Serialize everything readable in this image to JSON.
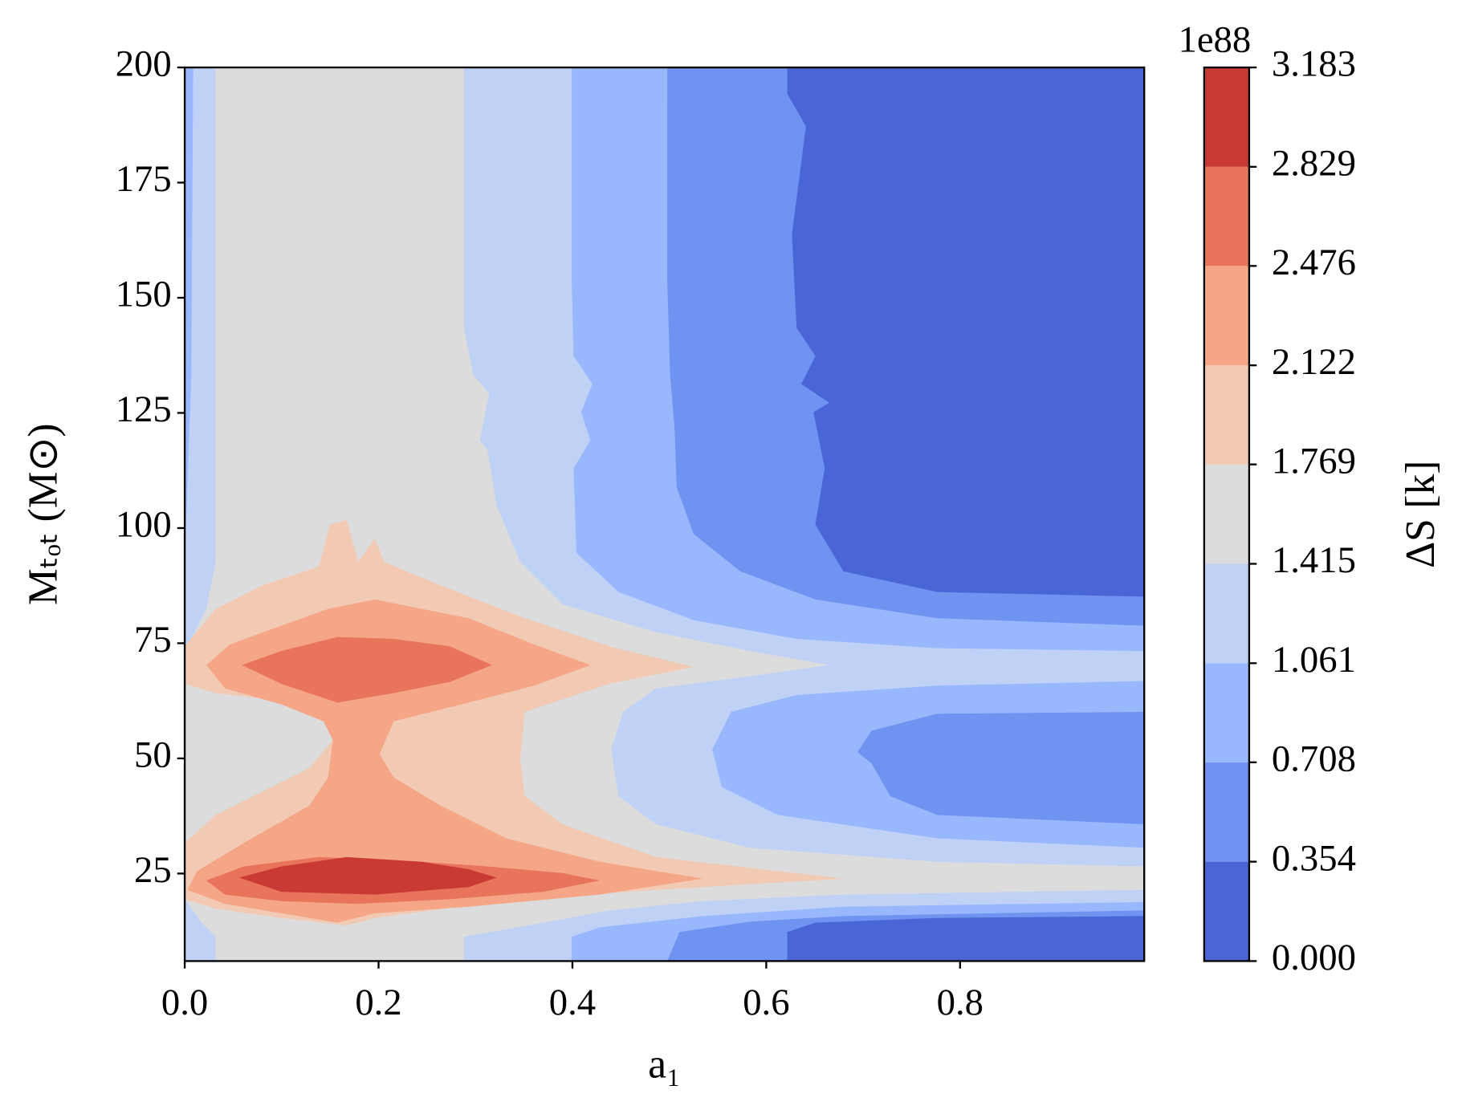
{
  "chart_data": {
    "type": "contourf",
    "x_label": "a₁",
    "y_label": "Mₜₒₜ (M⊙)",
    "colorbar_label": "ΔS [k]",
    "colorbar_offset_label": "1e88",
    "xlim": [
      0,
      0.99
    ],
    "ylim": [
      6,
      200
    ],
    "xticks": [
      {
        "value": 0,
        "label": "0.0"
      },
      0.2,
      0.4,
      0.6,
      0.8
    ],
    "yticks": [
      25,
      50,
      75,
      100,
      125,
      150,
      175,
      200
    ],
    "levels": [
      {
        "value": 0,
        "label": "0.000"
      },
      0.354,
      0.708,
      1.061,
      1.415,
      1.769,
      2.122,
      2.476,
      2.829,
      3.183
    ],
    "colors": [
      "#4a66d6",
      "#7092f0",
      "#98b7fd",
      "#bfd2f6",
      "#dcdcdc",
      "#f2c9b3",
      "#f5a686",
      "#e7745b",
      "#c93a35"
    ]
  }
}
